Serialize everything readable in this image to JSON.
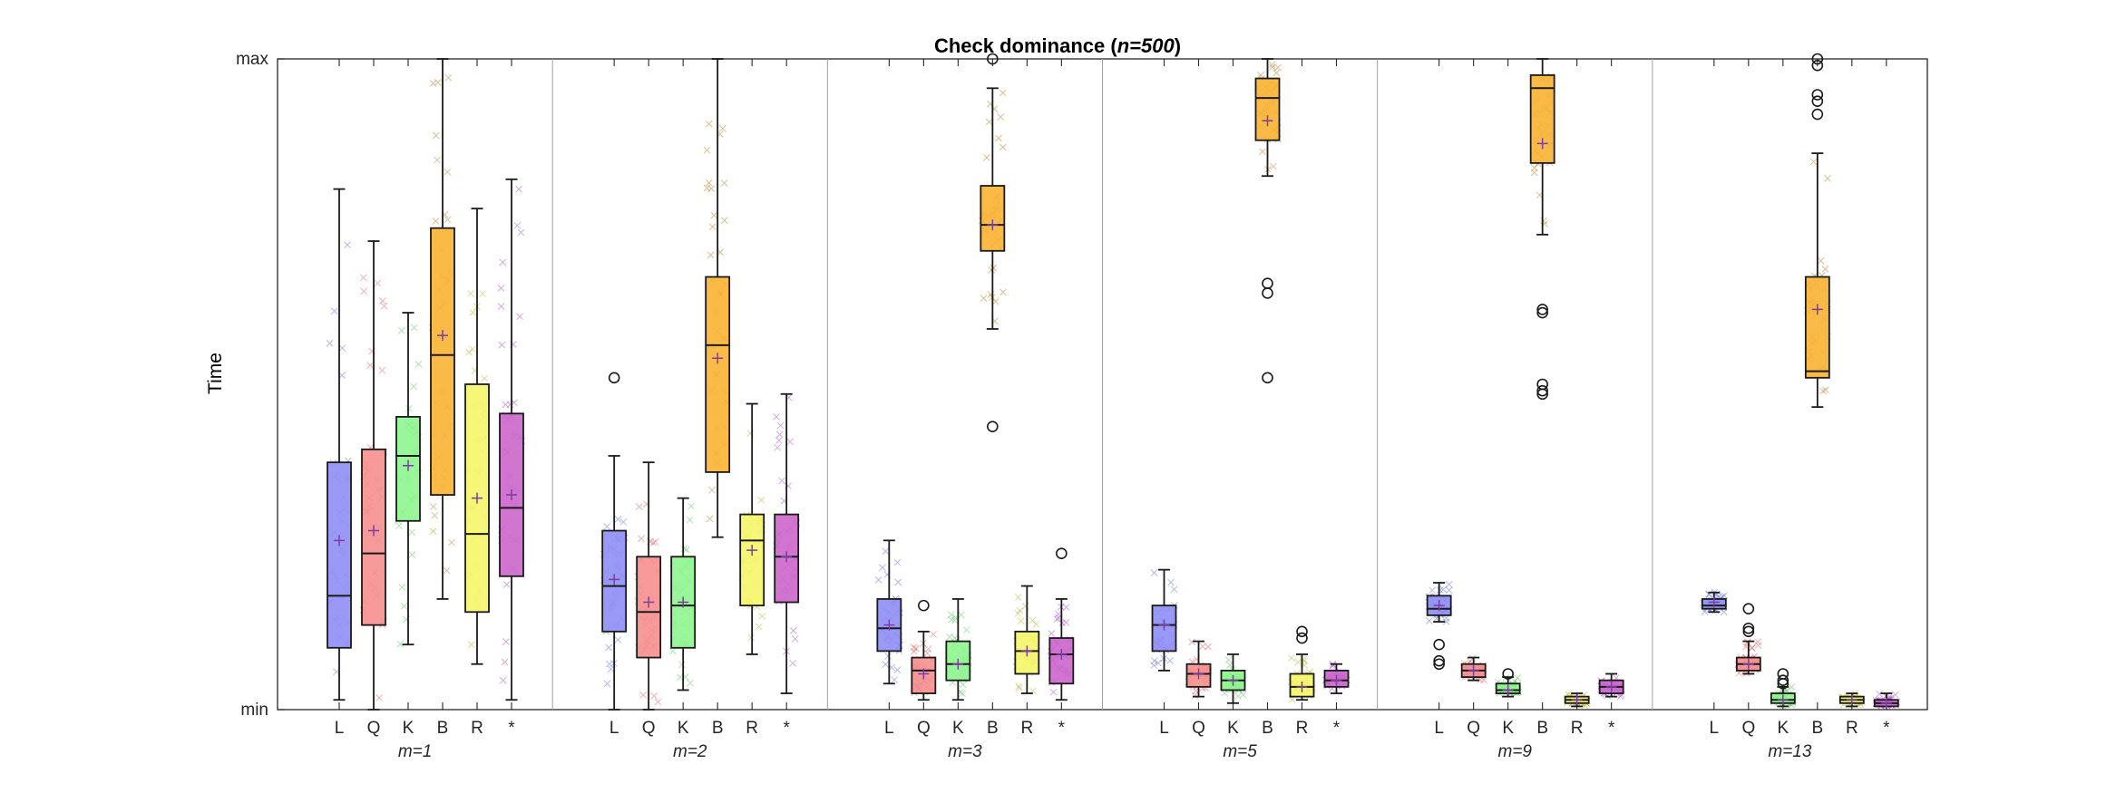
{
  "chart_data": {
    "type": "box",
    "title": "Check dominance (",
    "title_n": "n=500",
    "title_close": ")",
    "ylabel": "Time",
    "y_ticks": [
      "min",
      "max"
    ],
    "ylim": [
      0,
      1
    ],
    "colors": {
      "L": "#8f8ff5",
      "Q": "#f58f8f",
      "K": "#8ff58f",
      "B": "#f9b233",
      "R": "#f5f56a",
      "*": "#cc66cc"
    },
    "marker_colors": {
      "L": "#4f5fd9",
      "Q": "#d94f4f",
      "K": "#4fbf4f",
      "B": "#b07010",
      "R": "#b0b020",
      "*": "#9f3fbf"
    },
    "groups": [
      {
        "label": "m=1",
        "series": [
          {
            "name": "L",
            "min": 0.015,
            "q1": 0.095,
            "median": 0.175,
            "q3": 0.38,
            "max": 0.8,
            "mean": 0.26,
            "outliers": []
          },
          {
            "name": "Q",
            "min": 0.0,
            "q1": 0.13,
            "median": 0.24,
            "q3": 0.4,
            "max": 0.72,
            "mean": 0.275,
            "outliers": []
          },
          {
            "name": "K",
            "min": 0.1,
            "q1": 0.29,
            "median": 0.39,
            "q3": 0.45,
            "max": 0.61,
            "mean": 0.375,
            "outliers": []
          },
          {
            "name": "B",
            "min": 0.17,
            "q1": 0.33,
            "median": 0.545,
            "q3": 0.74,
            "max": 1.0,
            "mean": 0.575,
            "outliers": []
          },
          {
            "name": "R",
            "min": 0.07,
            "q1": 0.15,
            "median": 0.27,
            "q3": 0.5,
            "max": 0.77,
            "mean": 0.325,
            "outliers": []
          },
          {
            "name": "*",
            "min": 0.015,
            "q1": 0.205,
            "median": 0.31,
            "q3": 0.455,
            "max": 0.815,
            "mean": 0.33,
            "outliers": []
          }
        ]
      },
      {
        "label": "m=2",
        "series": [
          {
            "name": "L",
            "min": 0.0,
            "q1": 0.12,
            "median": 0.19,
            "q3": 0.275,
            "max": 0.39,
            "mean": 0.2,
            "outliers": [
              0.51
            ]
          },
          {
            "name": "Q",
            "min": 0.0,
            "q1": 0.08,
            "median": 0.15,
            "q3": 0.235,
            "max": 0.38,
            "mean": 0.165,
            "outliers": []
          },
          {
            "name": "K",
            "min": 0.03,
            "q1": 0.095,
            "median": 0.16,
            "q3": 0.235,
            "max": 0.325,
            "mean": 0.165,
            "outliers": []
          },
          {
            "name": "B",
            "min": 0.265,
            "q1": 0.365,
            "median": 0.56,
            "q3": 0.665,
            "max": 1.0,
            "mean": 0.54,
            "outliers": []
          },
          {
            "name": "R",
            "min": 0.085,
            "q1": 0.16,
            "median": 0.26,
            "q3": 0.3,
            "max": 0.47,
            "mean": 0.245,
            "outliers": []
          },
          {
            "name": "*",
            "min": 0.025,
            "q1": 0.165,
            "median": 0.235,
            "q3": 0.3,
            "max": 0.485,
            "mean": 0.235,
            "outliers": []
          }
        ]
      },
      {
        "label": "m=3",
        "series": [
          {
            "name": "L",
            "min": 0.04,
            "q1": 0.09,
            "median": 0.125,
            "q3": 0.17,
            "max": 0.26,
            "mean": 0.13,
            "outliers": []
          },
          {
            "name": "Q",
            "min": 0.015,
            "q1": 0.025,
            "median": 0.06,
            "q3": 0.08,
            "max": 0.12,
            "mean": 0.055,
            "outliers": [
              0.16
            ]
          },
          {
            "name": "K",
            "min": 0.015,
            "q1": 0.045,
            "median": 0.07,
            "q3": 0.105,
            "max": 0.17,
            "mean": 0.07,
            "outliers": []
          },
          {
            "name": "B",
            "min": 0.585,
            "q1": 0.705,
            "median": 0.745,
            "q3": 0.805,
            "max": 0.955,
            "mean": 0.745,
            "outliers": [
              1.0,
              0.435
            ]
          },
          {
            "name": "R",
            "min": 0.025,
            "q1": 0.055,
            "median": 0.09,
            "q3": 0.12,
            "max": 0.19,
            "mean": 0.09,
            "outliers": []
          },
          {
            "name": "*",
            "min": 0.015,
            "q1": 0.04,
            "median": 0.085,
            "q3": 0.11,
            "max": 0.17,
            "mean": 0.085,
            "outliers": [
              0.24
            ]
          }
        ]
      },
      {
        "label": "m=5",
        "series": [
          {
            "name": "L",
            "min": 0.06,
            "q1": 0.09,
            "median": 0.13,
            "q3": 0.16,
            "max": 0.215,
            "mean": 0.13,
            "outliers": []
          },
          {
            "name": "Q",
            "min": 0.02,
            "q1": 0.035,
            "median": 0.055,
            "q3": 0.07,
            "max": 0.105,
            "mean": 0.055,
            "outliers": []
          },
          {
            "name": "K",
            "min": 0.01,
            "q1": 0.03,
            "median": 0.045,
            "q3": 0.06,
            "max": 0.085,
            "mean": 0.045,
            "outliers": []
          },
          {
            "name": "B",
            "min": 0.82,
            "q1": 0.875,
            "median": 0.94,
            "q3": 0.97,
            "max": 1.0,
            "mean": 0.905,
            "outliers": [
              0.655,
              0.64,
              0.51
            ]
          },
          {
            "name": "R",
            "min": 0.015,
            "q1": 0.02,
            "median": 0.035,
            "q3": 0.055,
            "max": 0.085,
            "mean": 0.035,
            "outliers": [
              0.12,
              0.11
            ]
          },
          {
            "name": "*",
            "min": 0.025,
            "q1": 0.035,
            "median": 0.045,
            "q3": 0.06,
            "max": 0.07,
            "mean": 0.045,
            "outliers": []
          }
        ]
      },
      {
        "label": "m=9",
        "series": [
          {
            "name": "L",
            "min": 0.135,
            "q1": 0.145,
            "median": 0.155,
            "q3": 0.175,
            "max": 0.195,
            "mean": 0.16,
            "outliers": [
              0.1,
              0.075,
              0.07
            ]
          },
          {
            "name": "Q",
            "min": 0.045,
            "q1": 0.05,
            "median": 0.06,
            "q3": 0.07,
            "max": 0.08,
            "mean": 0.06,
            "outliers": []
          },
          {
            "name": "K",
            "min": 0.02,
            "q1": 0.025,
            "median": 0.03,
            "q3": 0.04,
            "max": 0.05,
            "mean": 0.03,
            "outliers": [
              0.055
            ]
          },
          {
            "name": "R",
            "min": 0.005,
            "q1": 0.01,
            "median": 0.015,
            "q3": 0.02,
            "max": 0.025,
            "mean": 0.015,
            "outliers": []
          },
          {
            "name": "*",
            "min": 0.02,
            "q1": 0.025,
            "median": 0.035,
            "q3": 0.045,
            "max": 0.055,
            "mean": 0.035,
            "outliers": []
          },
          {
            "name": "B",
            "min": 0.73,
            "q1": 0.84,
            "median": 0.955,
            "q3": 0.975,
            "max": 1.0,
            "mean": 0.87,
            "outliers": [
              0.615,
              0.61,
              0.5,
              0.49,
              0.485
            ]
          }
        ]
      },
      {
        "label": "m=13",
        "series": [
          {
            "name": "L",
            "min": 0.15,
            "q1": 0.155,
            "median": 0.16,
            "q3": 0.17,
            "max": 0.18,
            "mean": 0.165,
            "outliers": []
          },
          {
            "name": "Q",
            "min": 0.055,
            "q1": 0.06,
            "median": 0.07,
            "q3": 0.08,
            "max": 0.105,
            "mean": 0.07,
            "outliers": [
              0.155,
              0.125,
              0.12
            ]
          },
          {
            "name": "K",
            "min": 0.005,
            "q1": 0.01,
            "median": 0.015,
            "q3": 0.025,
            "max": 0.035,
            "mean": 0.015,
            "outliers": [
              0.055,
              0.045,
              0.04
            ]
          },
          {
            "name": "R",
            "min": 0.005,
            "q1": 0.01,
            "median": 0.015,
            "q3": 0.02,
            "max": 0.025,
            "mean": 0.015,
            "outliers": []
          },
          {
            "name": "*",
            "min": 0.005,
            "q1": 0.005,
            "median": 0.01,
            "q3": 0.015,
            "max": 0.025,
            "mean": 0.01,
            "outliers": []
          },
          {
            "name": "B",
            "min": 0.465,
            "q1": 0.51,
            "median": 0.52,
            "q3": 0.665,
            "max": 0.855,
            "mean": 0.615,
            "outliers": [
              1.0,
              0.99,
              0.945,
              0.935,
              0.915
            ]
          }
        ]
      }
    ],
    "category_order": [
      "L",
      "Q",
      "K",
      "B",
      "R",
      "*"
    ]
  }
}
